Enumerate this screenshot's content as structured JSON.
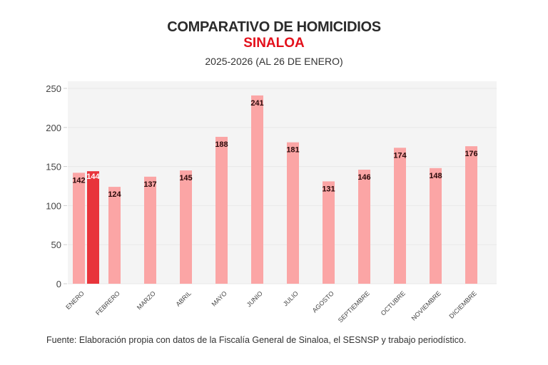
{
  "header": {
    "title": "COMPARATIVO DE HOMICIDIOS",
    "region": "SINALOA",
    "period": "2025-2026 (AL 26 DE ENERO)"
  },
  "footer": {
    "source": "Fuente: Elaboración propia con datos de la Fiscalía General de Sinaloa, el SESNSP y trabajo periodístico."
  },
  "colors": {
    "bar_2025": "#fba5a5",
    "bar_2026": "#e8343b",
    "plot_bg": "#f4f4f4",
    "grid": "#e8e8e8",
    "label_dark": "#2a0a0a",
    "label_light": "#ffffff",
    "axis_text": "#444444"
  },
  "chart_data": {
    "type": "bar",
    "title": "COMPARATIVO DE HOMICIDIOS",
    "subtitle": "SINALOA — 2025-2026 (AL 26 DE ENERO)",
    "xlabel": "",
    "ylabel": "",
    "ylim": [
      0,
      250
    ],
    "yticks": [
      0,
      50,
      100,
      150,
      200,
      250
    ],
    "grid": true,
    "legend": "none",
    "categories": [
      "ENERO",
      "FEBRERO",
      "MARZO",
      "ABRIL",
      "MAYO",
      "JUNIO",
      "JULIO",
      "AGOSTO",
      "SEPTIEMBRE",
      "OCTUBRE",
      "NOVIEMBRE",
      "DICIEMBRE"
    ],
    "series": [
      {
        "name": "2025",
        "values": [
          142,
          124,
          137,
          145,
          188,
          241,
          181,
          131,
          146,
          174,
          148,
          176
        ]
      },
      {
        "name": "2026",
        "values": [
          144,
          null,
          null,
          null,
          null,
          null,
          null,
          null,
          null,
          null,
          null,
          null
        ]
      }
    ]
  }
}
